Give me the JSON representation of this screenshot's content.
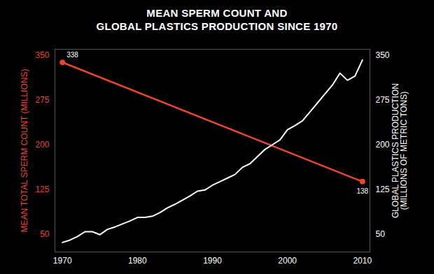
{
  "chart_data": {
    "type": "line",
    "title": "MEAN SPERM COUNT AND\nGLOBAL PLASTICS PRODUCTION SINCE 1970",
    "xlim": [
      1969,
      2011
    ],
    "xticks": [
      1970,
      1980,
      1990,
      2000,
      2010
    ],
    "ylabel": "MEAN TOTAL SPERM COUNT (MILLIONS)",
    "ylim": [
      20,
      360
    ],
    "yticks": [
      50,
      125,
      200,
      275,
      350
    ],
    "y2label": "GLOBAL PLASTICS PRODUCTION\n(MILLIONS OF METRIC TONS)",
    "y2lim": [
      20,
      360
    ],
    "y2ticks": [
      50,
      125,
      200,
      275,
      350
    ],
    "series": [
      {
        "name": "Mean total sperm count",
        "color": "#e5482d",
        "marker": "circle",
        "data_labels": true,
        "x": [
          1970,
          2010
        ],
        "values": [
          338,
          138
        ]
      },
      {
        "name": "Global plastics production",
        "color": "#ffffff",
        "axis": "y2",
        "x": [
          1970,
          1971,
          1972,
          1973,
          1974,
          1975,
          1976,
          1977,
          1978,
          1979,
          1980,
          1981,
          1982,
          1983,
          1984,
          1985,
          1986,
          1987,
          1988,
          1989,
          1990,
          1991,
          1992,
          1993,
          1994,
          1995,
          1996,
          1997,
          1998,
          1999,
          2000,
          2001,
          2002,
          2003,
          2004,
          2005,
          2006,
          2007,
          2008,
          2009,
          2010
        ],
        "values": [
          36,
          40,
          46,
          54,
          54,
          49,
          58,
          62,
          67,
          72,
          78,
          78,
          80,
          86,
          94,
          100,
          107,
          114,
          122,
          124,
          132,
          138,
          144,
          150,
          162,
          168,
          180,
          192,
          200,
          208,
          225,
          232,
          240,
          255,
          270,
          285,
          300,
          320,
          308,
          315,
          342
        ]
      }
    ]
  }
}
